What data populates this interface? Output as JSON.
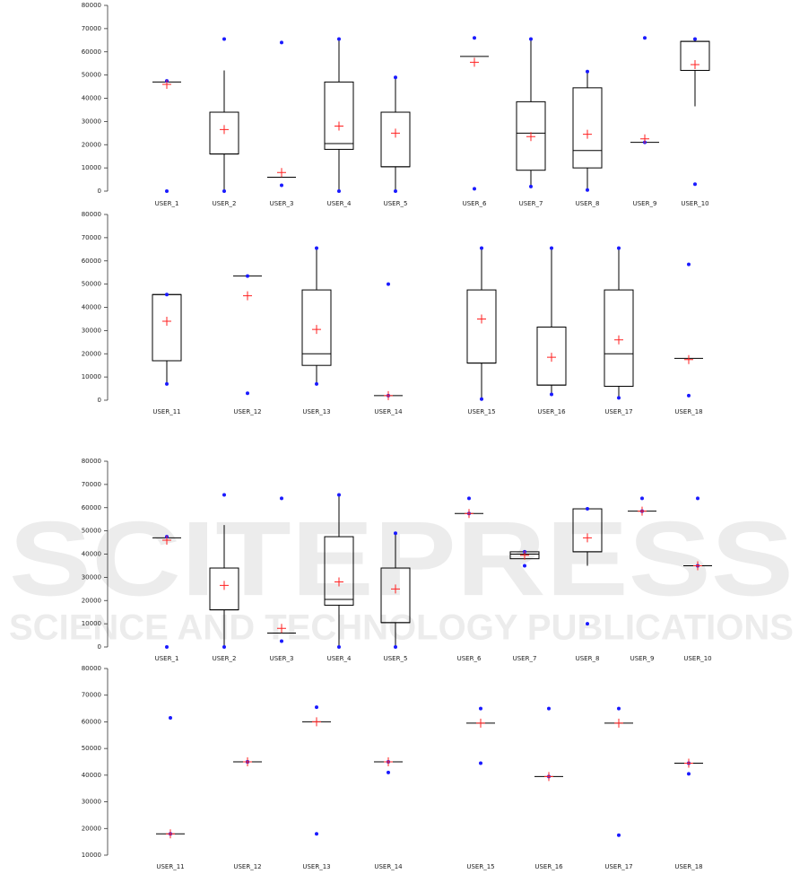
{
  "watermark": {
    "title": "SCITEPRESS",
    "subtitle": "SCIENCE AND TECHNOLOGY PUBLICATIONS"
  },
  "chart_data": [
    {
      "type": "box",
      "ylim": [
        0,
        80000
      ],
      "yticks": [
        0,
        10000,
        20000,
        30000,
        40000,
        50000,
        60000,
        70000,
        80000
      ],
      "box_color": "#000000",
      "point_color": "#1a1aff",
      "mean_color": "#ff2020",
      "categories": [
        "USER_1",
        "USER_2",
        "USER_3",
        "USER_4",
        "USER_5",
        "USER_6",
        "USER_7",
        "USER_8",
        "USER_9",
        "USER_10"
      ],
      "boxes": [
        {
          "min": 0,
          "whisker_low": 47000,
          "q1": 47000,
          "median": 47000,
          "q3": 47000,
          "whisker_high": 47000,
          "max": 47500,
          "mean": 46000
        },
        {
          "min": 0,
          "whisker_low": 0,
          "q1": 16000,
          "median": 16000,
          "q3": 34000,
          "whisker_high": 52000,
          "max": 65500,
          "mean": 26500
        },
        {
          "min": 2500,
          "whisker_low": 6000,
          "q1": 6000,
          "median": 6000,
          "q3": 6000,
          "whisker_high": 6000,
          "max": 64000,
          "mean": 8000
        },
        {
          "min": 0,
          "whisker_low": 0,
          "q1": 18000,
          "median": 20500,
          "q3": 47000,
          "whisker_high": 65500,
          "max": 65500,
          "mean": 28000
        },
        {
          "min": 0,
          "whisker_low": 0,
          "q1": 10500,
          "median": 10500,
          "q3": 34000,
          "whisker_high": 49000,
          "max": 49000,
          "mean": 25000
        },
        {
          "min": 1000,
          "whisker_low": 58000,
          "q1": 58000,
          "median": 58000,
          "q3": 58000,
          "whisker_high": 58000,
          "max": 66000,
          "mean": 55500
        },
        {
          "min": 2000,
          "whisker_low": 2000,
          "q1": 9000,
          "median": 25000,
          "q3": 38500,
          "whisker_high": 65500,
          "max": 65500,
          "mean": 23500
        },
        {
          "min": 500,
          "whisker_low": 500,
          "q1": 10000,
          "median": 17500,
          "q3": 44500,
          "whisker_high": 51500,
          "max": 51500,
          "mean": 24500
        },
        {
          "min": 21000,
          "whisker_low": 21000,
          "q1": 21000,
          "median": 21000,
          "q3": 21000,
          "whisker_high": 21000,
          "max": 66000,
          "mean": 22500
        },
        {
          "min": 3000,
          "whisker_low": 36500,
          "q1": 52000,
          "median": 64500,
          "q3": 64500,
          "whisker_high": 65500,
          "max": 65500,
          "mean": 54500
        }
      ]
    },
    {
      "type": "box",
      "ylim": [
        0,
        80000
      ],
      "yticks": [
        0,
        10000,
        20000,
        30000,
        40000,
        50000,
        60000,
        70000,
        80000
      ],
      "box_color": "#000000",
      "point_color": "#1a1aff",
      "mean_color": "#ff2020",
      "categories": [
        "USER_11",
        "USER_12",
        "USER_13",
        "USER_14",
        "USER_15",
        "USER_16",
        "USER_17",
        "USER_18"
      ],
      "boxes": [
        {
          "min": 7000,
          "whisker_low": 7000,
          "q1": 17000,
          "median": 45500,
          "q3": 45500,
          "whisker_high": 45500,
          "max": 45500,
          "mean": 34000
        },
        {
          "min": 3000,
          "whisker_low": 53500,
          "q1": 53500,
          "median": 53500,
          "q3": 53500,
          "whisker_high": 53500,
          "max": 53500,
          "mean": 45000
        },
        {
          "min": 7000,
          "whisker_low": 7000,
          "q1": 15000,
          "median": 20000,
          "q3": 47500,
          "whisker_high": 65500,
          "max": 65500,
          "mean": 30500
        },
        {
          "min": 2000,
          "whisker_low": 2000,
          "q1": 2000,
          "median": 2000,
          "q3": 2000,
          "whisker_high": 2000,
          "max": 50000,
          "mean": 2000
        },
        {
          "min": 500,
          "whisker_low": 500,
          "q1": 16000,
          "median": 16000,
          "q3": 47500,
          "whisker_high": 65500,
          "max": 65500,
          "mean": 35000
        },
        {
          "min": 2500,
          "whisker_low": 2500,
          "q1": 6500,
          "median": 6500,
          "q3": 31500,
          "whisker_high": 65500,
          "max": 65500,
          "mean": 18500
        },
        {
          "min": 1000,
          "whisker_low": 1000,
          "q1": 6000,
          "median": 20000,
          "q3": 47500,
          "whisker_high": 65500,
          "max": 65500,
          "mean": 26000
        },
        {
          "min": 2000,
          "whisker_low": 18000,
          "q1": 18000,
          "median": 18000,
          "q3": 18000,
          "whisker_high": 18000,
          "max": 58500,
          "mean": 17500
        }
      ]
    },
    {
      "type": "box",
      "ylim": [
        0,
        80000
      ],
      "yticks": [
        0,
        10000,
        20000,
        30000,
        40000,
        50000,
        60000,
        70000,
        80000
      ],
      "box_color": "#000000",
      "point_color": "#1a1aff",
      "mean_color": "#ff2020",
      "categories": [
        "USER_1",
        "USER_2",
        "USER_3",
        "USER_4",
        "USER_5",
        "USER_6",
        "USER_7",
        "USER_8",
        "USER_9",
        "USER_10"
      ],
      "boxes": [
        {
          "min": 0,
          "whisker_low": 47000,
          "q1": 47000,
          "median": 47000,
          "q3": 47000,
          "whisker_high": 47000,
          "max": 47500,
          "mean": 46000
        },
        {
          "min": 0,
          "whisker_low": 0,
          "q1": 16000,
          "median": 16000,
          "q3": 34000,
          "whisker_high": 52500,
          "max": 65500,
          "mean": 26500
        },
        {
          "min": 2500,
          "whisker_low": 6000,
          "q1": 6000,
          "median": 6000,
          "q3": 6000,
          "whisker_high": 6000,
          "max": 64000,
          "mean": 8000
        },
        {
          "min": 0,
          "whisker_low": 0,
          "q1": 18000,
          "median": 20500,
          "q3": 47500,
          "whisker_high": 65500,
          "max": 65500,
          "mean": 28000
        },
        {
          "min": 0,
          "whisker_low": 0,
          "q1": 10500,
          "median": 10500,
          "q3": 34000,
          "whisker_high": 49000,
          "max": 49000,
          "mean": 25000
        },
        {
          "min": 57500,
          "whisker_low": 57500,
          "q1": 57500,
          "median": 57500,
          "q3": 57500,
          "whisker_high": 57500,
          "max": 64000,
          "mean": 57500
        },
        {
          "min": 35000,
          "whisker_low": 38000,
          "q1": 38000,
          "median": 40000,
          "q3": 41000,
          "whisker_high": 41000,
          "max": 41000,
          "mean": 39500
        },
        {
          "min": 10000,
          "whisker_low": 35000,
          "q1": 41000,
          "median": 41000,
          "q3": 59500,
          "whisker_high": 59500,
          "max": 59500,
          "mean": 47000
        },
        {
          "min": 58500,
          "whisker_low": 58500,
          "q1": 58500,
          "median": 58500,
          "q3": 58500,
          "whisker_high": 58500,
          "max": 64000,
          "mean": 58500
        },
        {
          "min": 35000,
          "whisker_low": 35000,
          "q1": 35000,
          "median": 35000,
          "q3": 35000,
          "whisker_high": 35000,
          "max": 64000,
          "mean": 35000
        }
      ]
    },
    {
      "type": "box",
      "ylim": [
        10000,
        80000
      ],
      "yticks": [
        10000,
        20000,
        30000,
        40000,
        50000,
        60000,
        70000,
        80000
      ],
      "box_color": "#000000",
      "point_color": "#1a1aff",
      "mean_color": "#ff2020",
      "categories": [
        "USER_11",
        "USER_12",
        "USER_13",
        "USER_14",
        "USER_15",
        "USER_16",
        "USER_17",
        "USER_18"
      ],
      "boxes": [
        {
          "min": 18000,
          "whisker_low": 18000,
          "q1": 18000,
          "median": 18000,
          "q3": 18000,
          "whisker_high": 18000,
          "max": 61500,
          "mean": 18000
        },
        {
          "min": 45000,
          "whisker_low": 45000,
          "q1": 45000,
          "median": 45000,
          "q3": 45000,
          "whisker_high": 45000,
          "max": 45000,
          "mean": 45000
        },
        {
          "min": 18000,
          "whisker_low": 60000,
          "q1": 60000,
          "median": 60000,
          "q3": 60000,
          "whisker_high": 60000,
          "max": 65500,
          "mean": 60000
        },
        {
          "min": 41000,
          "whisker_low": 45000,
          "q1": 45000,
          "median": 45000,
          "q3": 45000,
          "whisker_high": 45000,
          "max": 45000,
          "mean": 45000
        },
        {
          "min": 44500,
          "whisker_low": 59500,
          "q1": 59500,
          "median": 59500,
          "q3": 59500,
          "whisker_high": 59500,
          "max": 65000,
          "mean": 59500
        },
        {
          "min": 39500,
          "whisker_low": 39500,
          "q1": 39500,
          "median": 39500,
          "q3": 39500,
          "whisker_high": 39500,
          "max": 65000,
          "mean": 39500
        },
        {
          "min": 17500,
          "whisker_low": 59500,
          "q1": 59500,
          "median": 59500,
          "q3": 59500,
          "whisker_high": 59500,
          "max": 65000,
          "mean": 59500
        },
        {
          "min": 40500,
          "whisker_low": 44500,
          "q1": 44500,
          "median": 44500,
          "q3": 44500,
          "whisker_high": 44500,
          "max": 44500,
          "mean": 44500
        }
      ]
    }
  ]
}
